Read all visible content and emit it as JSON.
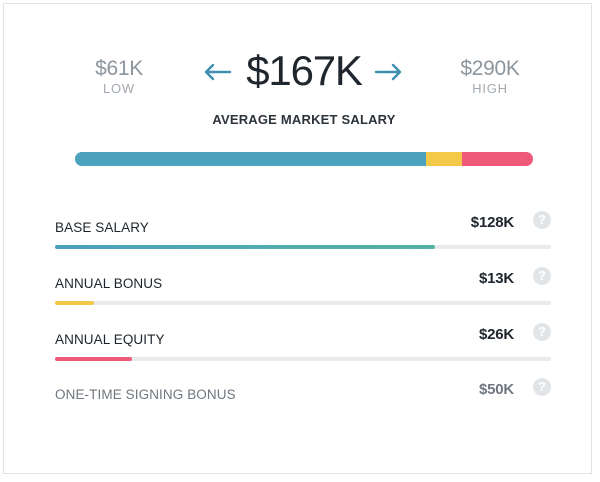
{
  "salary": {
    "low_value": "$61K",
    "low_label": "LOW",
    "high_value": "$290K",
    "high_label": "HIGH",
    "average_value": "$167K",
    "average_label": "AVERAGE MARKET SALARY"
  },
  "total_bar": {
    "segments": [
      {
        "name": "base",
        "fraction": 0.767,
        "color": "#4aa2bd"
      },
      {
        "name": "bonus",
        "fraction": 0.078,
        "color": "#f4c94a"
      },
      {
        "name": "equity",
        "fraction": 0.155,
        "color": "#ef5a7b"
      }
    ]
  },
  "components": [
    {
      "label": "BASE SALARY",
      "value": "$128K",
      "fill_fraction": 0.767,
      "color": "#4aa2bd",
      "color_end": "#52b3a1"
    },
    {
      "label": "ANNUAL BONUS",
      "value": "$13K",
      "fill_fraction": 0.078,
      "color": "#f4c94a"
    },
    {
      "label": "ANNUAL EQUITY",
      "value": "$26K",
      "fill_fraction": 0.155,
      "color": "#ef5a7b"
    },
    {
      "label": "ONE-TIME SIGNING BONUS",
      "value": "$50K",
      "fill_fraction": 0,
      "color": "#e8ebed"
    }
  ],
  "icons": {
    "arrow_left": "arrow-left-icon",
    "arrow_right": "arrow-right-icon",
    "help": "question-mark-icon"
  }
}
